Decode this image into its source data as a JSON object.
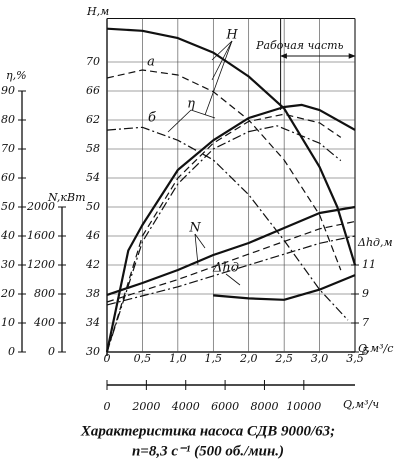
{
  "chart_data": {
    "type": "line",
    "axes": {
      "H": {
        "label": "H,м",
        "lim": [
          30,
          76
        ],
        "ticks": [
          30,
          34,
          38,
          42,
          46,
          50,
          54,
          58,
          62,
          66,
          70
        ]
      },
      "eta": {
        "label": "η,%",
        "lim": [
          0,
          115
        ],
        "ticks": [
          0,
          10,
          20,
          30,
          40,
          50,
          60,
          70,
          80,
          90
        ]
      },
      "N": {
        "label": "N,кВт",
        "lim": [
          0,
          4600
        ],
        "ticks": [
          0,
          400,
          800,
          1200,
          1600,
          2000
        ]
      },
      "dh": {
        "label": "Δhд,м",
        "lim": [
          5,
          28
        ],
        "ticks": [
          5,
          7,
          9,
          11
        ]
      }
    },
    "x_label": "Q,м³/с",
    "xlim": [
      0,
      3.5
    ],
    "xticks": [
      0,
      {
        "value": 0.5,
        "label": "0,5"
      },
      {
        "value": 1.0,
        "label": "1,0"
      },
      {
        "value": 1.5,
        "label": "1,5"
      },
      {
        "value": 2.0,
        "label": "2,0"
      },
      {
        "value": 2.5,
        "label": "2,5"
      },
      {
        "value": 3.0,
        "label": "3,0"
      },
      {
        "value": 3.5,
        "label": "3,5"
      }
    ],
    "x2_label": "Q,м³/ч",
    "x2lim": [
      0,
      12600
    ],
    "x2ticks": [
      0,
      2000,
      4000,
      6000,
      8000,
      10000
    ],
    "grid": true,
    "color": "#111111",
    "work_zone": {
      "label": "Рабочая часть",
      "range": [
        2.45,
        3.5
      ]
    },
    "series": [
      {
        "name": "H",
        "axis": "H",
        "style": "solid",
        "x": [
          0,
          0.5,
          1.0,
          1.5,
          2.0,
          2.5,
          3.0,
          3.25,
          3.5
        ],
        "values": [
          74.6,
          74.3,
          73.3,
          71.3,
          68,
          63.6,
          55.5,
          50,
          42
        ]
      },
      {
        "name": "а",
        "axis": "H",
        "style": "dashed",
        "x": [
          0,
          0.5,
          1.0,
          1.5,
          2.0,
          2.5,
          3.0,
          3.3
        ],
        "values": [
          67.8,
          68.9,
          68.2,
          65.9,
          62,
          56.5,
          48.9,
          41.3
        ]
      },
      {
        "name": "б",
        "axis": "H",
        "style": "dashdot",
        "x": [
          0,
          0.5,
          1.0,
          1.5,
          2.0,
          2.5,
          3.0,
          3.4
        ],
        "values": [
          60.6,
          61,
          59.2,
          56.5,
          51.7,
          45.4,
          38.6,
          34.4
        ]
      },
      {
        "name": "η",
        "axis": "eta",
        "style": "solid",
        "x": [
          0,
          0.3,
          0.5,
          1.0,
          1.5,
          2.0,
          2.5,
          2.75,
          3.0,
          3.5
        ],
        "values": [
          0,
          35,
          43.8,
          62.8,
          73,
          80.7,
          84.5,
          85.2,
          83.4,
          76.6
        ]
      },
      {
        "axis": "eta",
        "style": "dashed",
        "x": [
          0,
          0.5,
          1.0,
          1.5,
          2.0,
          2.5,
          3.0,
          3.3
        ],
        "values": [
          0,
          40,
          60,
          72,
          79.5,
          82,
          79,
          74
        ]
      },
      {
        "axis": "eta",
        "style": "dashdot",
        "x": [
          0,
          0.5,
          1.0,
          1.5,
          2.0,
          2.4,
          3.0,
          3.3
        ],
        "values": [
          0,
          38,
          58,
          70,
          76,
          78,
          72,
          66
        ]
      },
      {
        "name": "N",
        "axis": "N",
        "style": "solid",
        "x": [
          0,
          0.5,
          1.0,
          1.5,
          2.0,
          2.5,
          3.0,
          3.5
        ],
        "values": [
          787,
          952,
          1131,
          1338,
          1503,
          1710,
          1917,
          2000
        ]
      },
      {
        "axis": "N",
        "style": "dashed",
        "x": [
          0,
          1.0,
          2.0,
          3.0,
          3.5
        ],
        "values": [
          690,
          1000,
          1350,
          1700,
          1800
        ]
      },
      {
        "axis": "N",
        "style": "dashdot",
        "x": [
          0,
          1.0,
          2.0,
          3.0,
          3.5
        ],
        "values": [
          650,
          900,
          1200,
          1500,
          1600
        ]
      },
      {
        "name": "Δhд",
        "axis": "dh",
        "style": "solid",
        "x": [
          1.5,
          2.0,
          2.5,
          3.0,
          3.5
        ],
        "values": [
          8.9,
          8.7,
          8.6,
          9.3,
          10.3
        ]
      }
    ],
    "caption": [
      "Характеристика насоса СДВ 9000/63;",
      "n=8,3 с⁻¹ (500 об./мин.)"
    ]
  }
}
